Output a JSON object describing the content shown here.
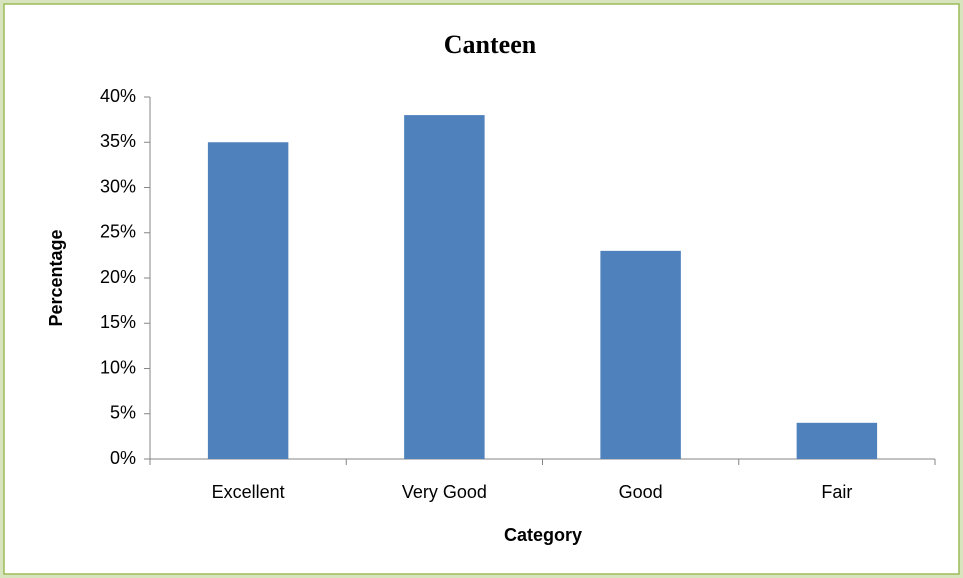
{
  "chart_data": {
    "type": "bar",
    "title": "Canteen",
    "x_label": "Category",
    "y_label": "Percentage",
    "categories": [
      "Excellent",
      "Very Good",
      "Good",
      "Fair"
    ],
    "values": [
      35,
      38,
      23,
      4
    ],
    "color": "#4f81bd",
    "ylim": [
      0,
      40
    ],
    "yticks": [
      {
        "value": 0,
        "label": "0%"
      },
      {
        "value": 5,
        "label": "5%"
      },
      {
        "value": 10,
        "label": "10%"
      },
      {
        "value": 15,
        "label": "15%"
      },
      {
        "value": 20,
        "label": "20%"
      },
      {
        "value": 25,
        "label": "25%"
      },
      {
        "value": 30,
        "label": "30%"
      },
      {
        "value": 35,
        "label": "35%"
      },
      {
        "value": 40,
        "label": "40%"
      }
    ],
    "grid": false
  }
}
